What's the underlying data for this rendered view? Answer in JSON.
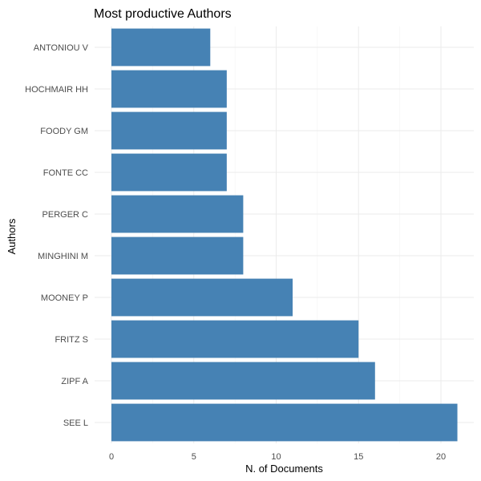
{
  "chart_data": {
    "type": "bar",
    "orientation": "horizontal",
    "title": "Most productive Authors",
    "xlabel": "N. of Documents",
    "ylabel": "Authors",
    "categories": [
      "SEE L",
      "ZIPF A",
      "FRITZ S",
      "MOONEY P",
      "MINGHINI M",
      "PERGER C",
      "FONTE CC",
      "FOODY GM",
      "HOCHMAIR HH",
      "ANTONIOU V"
    ],
    "values": [
      21,
      16,
      15,
      11,
      8,
      8,
      7,
      7,
      7,
      6
    ],
    "x_ticks": [
      "0",
      "5",
      "10",
      "15",
      "20"
    ],
    "xlim": [
      0,
      21
    ],
    "grid": true,
    "bar_color": "#4682B4",
    "grid_color": "#EBEBEB",
    "background": "#FFFFFF"
  }
}
